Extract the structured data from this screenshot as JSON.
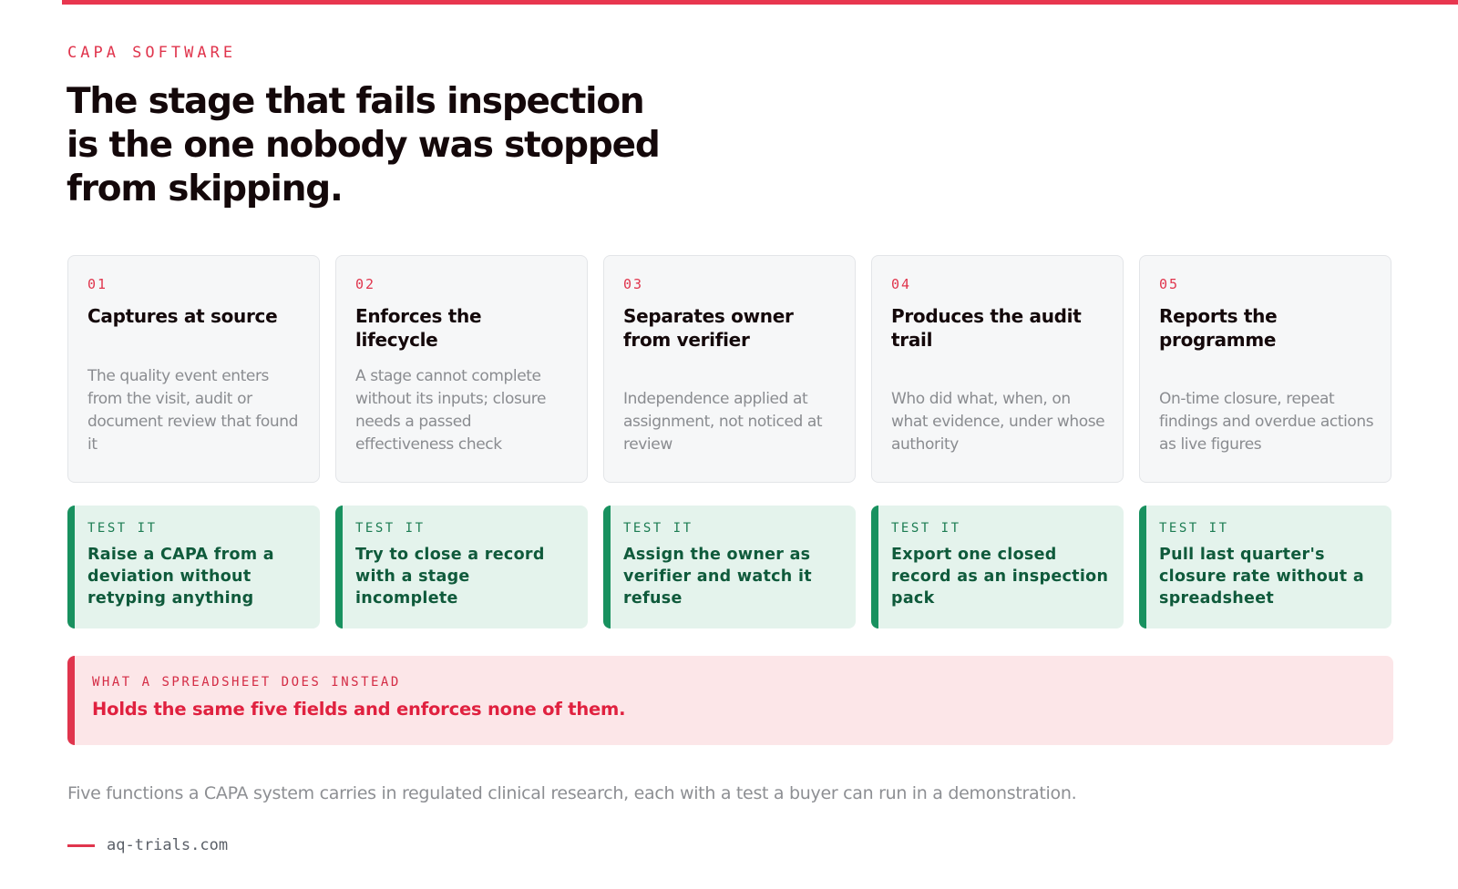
{
  "eyebrow": "CAPA SOFTWARE",
  "headline": "The stage that fails inspection is the one nobody was stopped from skipping.",
  "functions": [
    {
      "number": "01",
      "title": "Captures at source",
      "description": "The quality event enters from the visit, audit or document review that found it",
      "test_tag": "TEST IT",
      "test": "Raise a CAPA from a deviation without retyping anything"
    },
    {
      "number": "02",
      "title": "Enforces the lifecycle",
      "description": "A stage cannot complete without its inputs; closure needs a passed effectiveness check",
      "test_tag": "TEST IT",
      "test": "Try to close a record with a stage incomplete"
    },
    {
      "number": "03",
      "title": "Separates owner from verifier",
      "description": "Independence applied at assignment, not noticed at review",
      "test_tag": "TEST IT",
      "test": "Assign the owner as verifier and watch it refuse"
    },
    {
      "number": "04",
      "title": "Produces the audit trail",
      "description": "Who did what, when, on what evidence, under whose authority",
      "test_tag": "TEST IT",
      "test": "Export one closed record as an inspection pack"
    },
    {
      "number": "05",
      "title": "Reports the programme",
      "description": "On-time closure, repeat findings and overdue actions as live figures",
      "test_tag": "TEST IT",
      "test": "Pull last quarter's closure rate without a spreadsheet"
    }
  ],
  "callout": {
    "tag": "WHAT A SPREADSHEET DOES INSTEAD",
    "text": "Holds the same five fields and enforces none of them."
  },
  "summary": "Five functions a CAPA system carries in regulated clinical research, each with a test a buyer can run in a demonstration.",
  "footer": {
    "link": "aq-trials.com"
  },
  "colors": {
    "accent": "#e0354d",
    "test_green": "#18915f",
    "test_bg": "#e4f3ec",
    "callout_bg": "#fce6e8"
  }
}
